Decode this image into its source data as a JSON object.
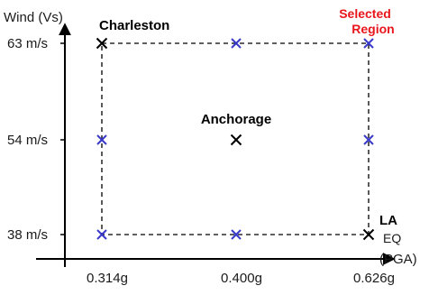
{
  "chart_data": {
    "type": "scatter",
    "x_axis": {
      "label": "(PGA)",
      "ticks": [
        {
          "value": 0.314,
          "label": "0.314g"
        },
        {
          "value": 0.4,
          "label": "0.400g"
        },
        {
          "value": 0.626,
          "label": "0.626g"
        }
      ]
    },
    "y_axis": {
      "label": "Wind (Vs)",
      "ticks": [
        {
          "value": 38,
          "label": "38 m/s"
        },
        {
          "value": 54,
          "label": "54 m/s"
        },
        {
          "value": 63,
          "label": "63 m/s"
        }
      ]
    },
    "region": {
      "label_lines": [
        "Selected",
        "Region"
      ],
      "x_range": [
        0.314,
        0.626
      ],
      "y_range": [
        38,
        63
      ],
      "color": "#e8161c"
    },
    "cities": [
      {
        "name": "Charleston",
        "x": 0.314,
        "y": 63,
        "color": "#000000"
      },
      {
        "name": "Anchorage",
        "x": 0.4,
        "y": 54,
        "color": "#000000"
      },
      {
        "name": "LA",
        "sub_label": "EQ",
        "x": 0.626,
        "y": 38,
        "color": "#000000"
      }
    ],
    "sample_points": [
      {
        "x": 0.4,
        "y": 63
      },
      {
        "x": 0.626,
        "y": 63
      },
      {
        "x": 0.314,
        "y": 54
      },
      {
        "x": 0.626,
        "y": 54
      },
      {
        "x": 0.314,
        "y": 38
      },
      {
        "x": 0.4,
        "y": 38
      }
    ],
    "colors": {
      "city_marker": "#000000",
      "sample_marker": "#3a3ac8",
      "axis": "#000000",
      "region_border": "#000000"
    }
  }
}
